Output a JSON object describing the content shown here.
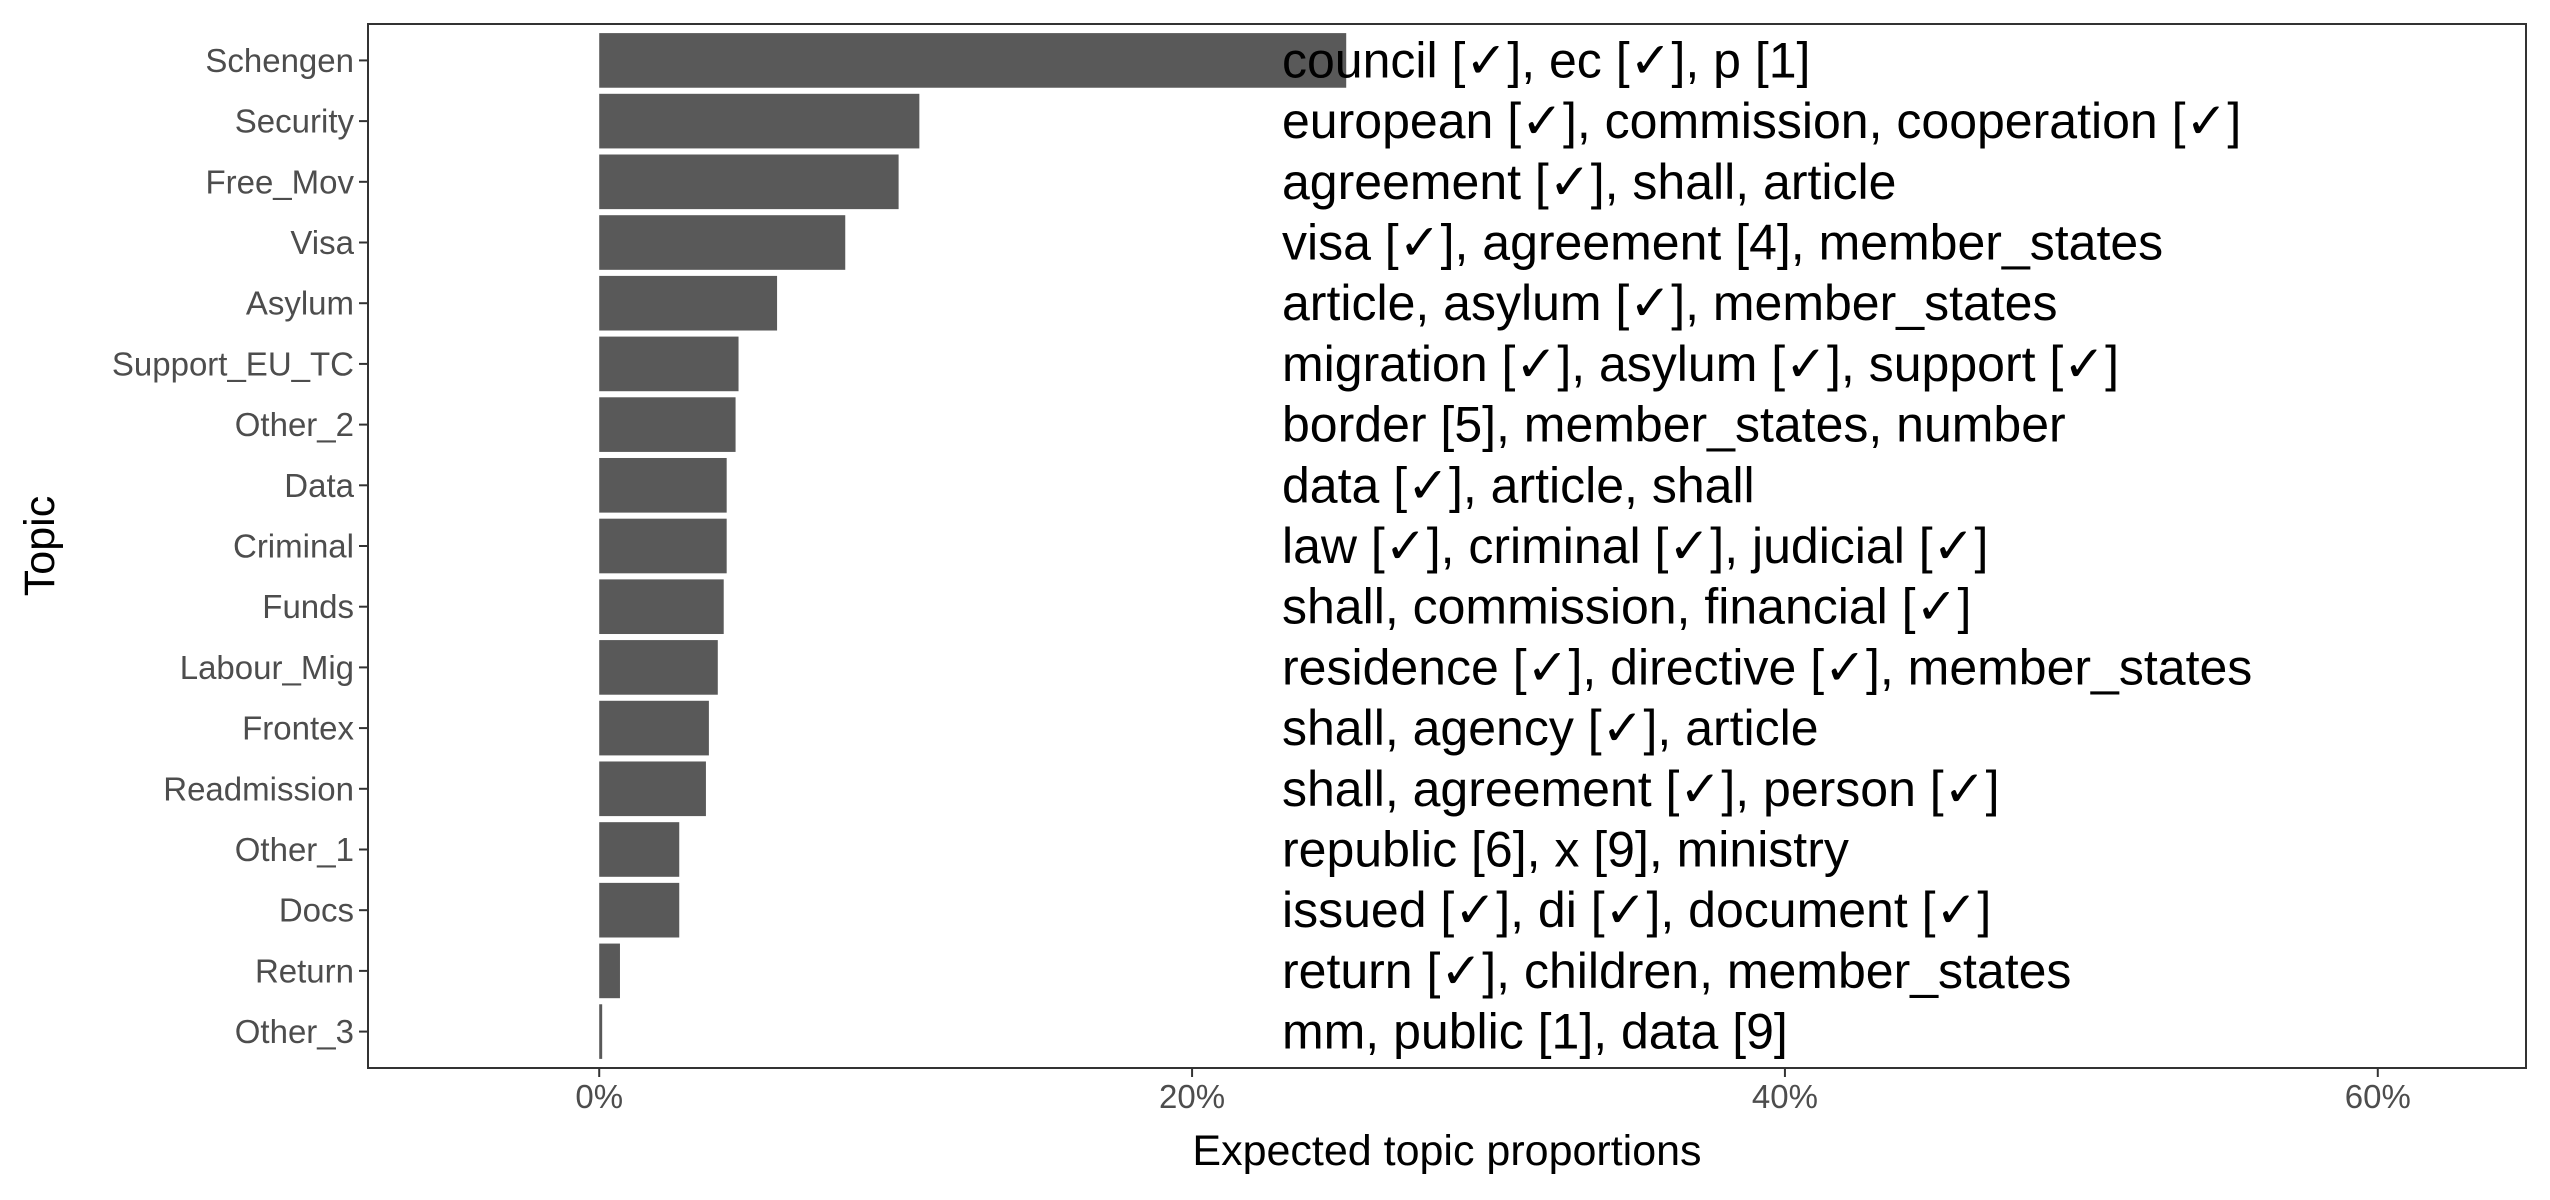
{
  "chart_data": {
    "type": "bar",
    "orientation": "horizontal",
    "xlabel": "Expected topic proportions",
    "ylabel": "Topic",
    "xlim": [
      -0.078,
      0.65
    ],
    "x_ticks": [
      0,
      0.2,
      0.4,
      0.6
    ],
    "x_tick_labels": [
      "0%",
      "20%",
      "40%",
      "60%"
    ],
    "grid": false,
    "bar_color": "#595959",
    "categories": [
      "Schengen",
      "Security",
      "Free_Mov",
      "Visa",
      "Asylum",
      "Support_EU_TC",
      "Other_2",
      "Data",
      "Criminal",
      "Funds",
      "Labour_Mig",
      "Frontex",
      "Readmission",
      "Other_1",
      "Docs",
      "Return",
      "Other_3"
    ],
    "values": [
      0.252,
      0.108,
      0.101,
      0.083,
      0.06,
      0.047,
      0.046,
      0.043,
      0.043,
      0.042,
      0.04,
      0.037,
      0.036,
      0.027,
      0.027,
      0.007,
      0.001
    ],
    "annotations": [
      "council [✓], ec [✓], p [1]",
      "european [✓], commission, cooperation [✓]",
      "agreement [✓], shall, article",
      "visa [✓], agreement [4], member_states",
      "article, asylum [✓], member_states",
      "migration [✓], asylum [✓], support [✓]",
      "border [5], member_states, number",
      "data [✓], article, shall",
      "law [✓], criminal [✓], judicial [✓]",
      "shall, commission, financial [✓]",
      "residence [✓], directive [✓], member_states",
      "shall, agency [✓], article",
      "shall, agreement [✓], person [✓]",
      "republic [6], x [9], ministry",
      "issued [✓], di [✓], document [✓]",
      "return [✓], children, member_states",
      "mm, public [1], data [9]"
    ]
  }
}
